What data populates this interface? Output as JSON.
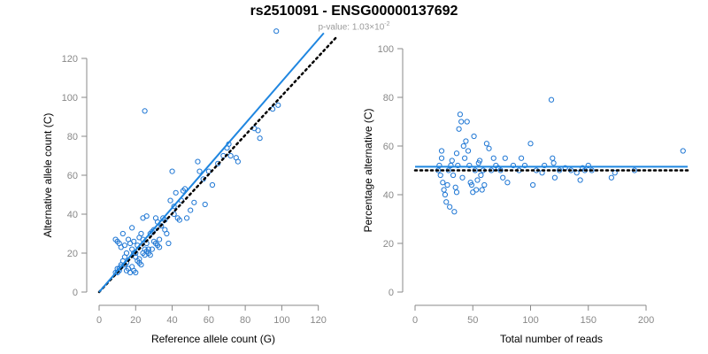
{
  "figure": {
    "title": "rs2510091 - ENSG00000137692",
    "subtitle_prefix": "p-value: 1.03×10",
    "subtitle_exp": "-2"
  },
  "colors": {
    "points": "#1f77d4",
    "fit": "#1f86e0",
    "ref": "#000000",
    "axis": "#888888"
  },
  "chart_data": [
    {
      "type": "scatter",
      "xlabel": "Reference allele count (G)",
      "ylabel": "Alternative allele count (C)",
      "xlim": [
        0,
        125
      ],
      "ylim": [
        0,
        125
      ],
      "xticks": [
        0,
        20,
        40,
        60,
        80,
        100,
        120
      ],
      "yticks": [
        0,
        20,
        40,
        60,
        80,
        100,
        120
      ],
      "fit_line": [
        [
          0,
          0
        ],
        [
          123,
          133
        ]
      ],
      "reference_line": [
        [
          0,
          0
        ],
        [
          130,
          131
        ]
      ],
      "points": [
        [
          9,
          10
        ],
        [
          10,
          12
        ],
        [
          11,
          11
        ],
        [
          12,
          13
        ],
        [
          9,
          27
        ],
        [
          10,
          26
        ],
        [
          11,
          25
        ],
        [
          12,
          23
        ],
        [
          13,
          30
        ],
        [
          14,
          24
        ],
        [
          15,
          11
        ],
        [
          16,
          12
        ],
        [
          17,
          10
        ],
        [
          18,
          13
        ],
        [
          19,
          11
        ],
        [
          20,
          10
        ],
        [
          16,
          27
        ],
        [
          17,
          25
        ],
        [
          18,
          22
        ],
        [
          19,
          20
        ],
        [
          20,
          18
        ],
        [
          21,
          16
        ],
        [
          22,
          15
        ],
        [
          23,
          14
        ],
        [
          24,
          20
        ],
        [
          25,
          22
        ],
        [
          18,
          33
        ],
        [
          15,
          20
        ],
        [
          14,
          18
        ],
        [
          13,
          16
        ],
        [
          12,
          14
        ],
        [
          11,
          12
        ],
        [
          10,
          10
        ],
        [
          22,
          28
        ],
        [
          23,
          30
        ],
        [
          24,
          38
        ],
        [
          26,
          39
        ],
        [
          25,
          93
        ],
        [
          26,
          21
        ],
        [
          27,
          20
        ],
        [
          28,
          19
        ],
        [
          29,
          22
        ],
        [
          30,
          26
        ],
        [
          31,
          25
        ],
        [
          32,
          24
        ],
        [
          33,
          23
        ],
        [
          28,
          30
        ],
        [
          29,
          31
        ],
        [
          30,
          32
        ],
        [
          31,
          38
        ],
        [
          32,
          36
        ],
        [
          34,
          34
        ],
        [
          35,
          38
        ],
        [
          36,
          37
        ],
        [
          37,
          30
        ],
        [
          38,
          25
        ],
        [
          39,
          47
        ],
        [
          40,
          62
        ],
        [
          41,
          44
        ],
        [
          42,
          51
        ],
        [
          43,
          38
        ],
        [
          44,
          37
        ],
        [
          45,
          47
        ],
        [
          46,
          52
        ],
        [
          47,
          53
        ],
        [
          48,
          38
        ],
        [
          50,
          42
        ],
        [
          52,
          46
        ],
        [
          54,
          67
        ],
        [
          55,
          62
        ],
        [
          57,
          58
        ],
        [
          58,
          45
        ],
        [
          60,
          62
        ],
        [
          62,
          55
        ],
        [
          65,
          66
        ],
        [
          68,
          70
        ],
        [
          70,
          74
        ],
        [
          71,
          76
        ],
        [
          72,
          70
        ],
        [
          75,
          69
        ],
        [
          76,
          67
        ],
        [
          85,
          84
        ],
        [
          87,
          83
        ],
        [
          88,
          79
        ],
        [
          95,
          94
        ],
        [
          97,
          134
        ],
        [
          98,
          96
        ],
        [
          27,
          22
        ],
        [
          26,
          25
        ],
        [
          24,
          27
        ],
        [
          21,
          24
        ],
        [
          19,
          26
        ],
        [
          15,
          15
        ],
        [
          14,
          14
        ],
        [
          20,
          20
        ],
        [
          22,
          17
        ],
        [
          25,
          19
        ],
        [
          33,
          27
        ],
        [
          36,
          32
        ],
        [
          41,
          40
        ]
      ]
    },
    {
      "type": "scatter",
      "xlabel": "Total number of reads",
      "ylabel": "Percentage alternative (C)",
      "xlim": [
        0,
        236
      ],
      "ylim": [
        0,
        100
      ],
      "xticks": [
        0,
        50,
        100,
        150,
        200
      ],
      "yticks": [
        0,
        20,
        40,
        60,
        80,
        100
      ],
      "fit_line": [
        [
          0,
          51.5
        ],
        [
          236,
          51.5
        ]
      ],
      "reference_line": [
        [
          0,
          50
        ],
        [
          236,
          50
        ]
      ],
      "points": [
        [
          20,
          50
        ],
        [
          21,
          52
        ],
        [
          22,
          48
        ],
        [
          23,
          55
        ],
        [
          23,
          58
        ],
        [
          24,
          45
        ],
        [
          25,
          42
        ],
        [
          26,
          40
        ],
        [
          27,
          37
        ],
        [
          28,
          44
        ],
        [
          29,
          50
        ],
        [
          30,
          35
        ],
        [
          31,
          52
        ],
        [
          32,
          54
        ],
        [
          33,
          48
        ],
        [
          34,
          33
        ],
        [
          35,
          43
        ],
        [
          36,
          41
        ],
        [
          36,
          57
        ],
        [
          37,
          52
        ],
        [
          38,
          67
        ],
        [
          39,
          73
        ],
        [
          40,
          70
        ],
        [
          41,
          47
        ],
        [
          42,
          60
        ],
        [
          43,
          55
        ],
        [
          44,
          62
        ],
        [
          45,
          70
        ],
        [
          46,
          58
        ],
        [
          47,
          52
        ],
        [
          48,
          45
        ],
        [
          49,
          44
        ],
        [
          50,
          41
        ],
        [
          51,
          64
        ],
        [
          52,
          50
        ],
        [
          53,
          42
        ],
        [
          54,
          46
        ],
        [
          55,
          53
        ],
        [
          56,
          54
        ],
        [
          57,
          48
        ],
        [
          58,
          42
        ],
        [
          59,
          50
        ],
        [
          60,
          44
        ],
        [
          62,
          61
        ],
        [
          64,
          59
        ],
        [
          66,
          50
        ],
        [
          68,
          55
        ],
        [
          70,
          52
        ],
        [
          72,
          51
        ],
        [
          74,
          50
        ],
        [
          76,
          47
        ],
        [
          78,
          55
        ],
        [
          80,
          45
        ],
        [
          85,
          52
        ],
        [
          90,
          50
        ],
        [
          92,
          55
        ],
        [
          95,
          52
        ],
        [
          100,
          61
        ],
        [
          102,
          44
        ],
        [
          105,
          50
        ],
        [
          110,
          49
        ],
        [
          112,
          52
        ],
        [
          118,
          79
        ],
        [
          119,
          55
        ],
        [
          120,
          53
        ],
        [
          121,
          47
        ],
        [
          125,
          50
        ],
        [
          130,
          51
        ],
        [
          135,
          50
        ],
        [
          140,
          49
        ],
        [
          143,
          46
        ],
        [
          145,
          51
        ],
        [
          147,
          50
        ],
        [
          150,
          52
        ],
        [
          153,
          50
        ],
        [
          170,
          47
        ],
        [
          173,
          49
        ],
        [
          190,
          50
        ],
        [
          232,
          58
        ]
      ]
    }
  ]
}
